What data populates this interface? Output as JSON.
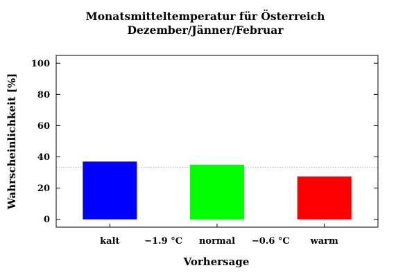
{
  "chart_data": {
    "type": "bar",
    "title_line1": "Monatsmitteltemperatur für Österreich",
    "title_line2": "Dezember/Jänner/Februar",
    "xlabel": "Vorhersage",
    "ylabel": "Wahrscheinlichkeit [%]",
    "categories": [
      "kalt",
      "normal",
      "warm"
    ],
    "values": [
      37,
      35,
      27.5
    ],
    "colors": [
      "#0000ff",
      "#00ff00",
      "#ff0000"
    ],
    "separator_labels": [
      "−1.9 °C",
      "−0.6 °C"
    ],
    "reference_line": 33.3,
    "ylim": [
      -5,
      105
    ],
    "yticks": [
      0,
      20,
      40,
      60,
      80,
      100
    ],
    "grid": false,
    "legend": "none"
  }
}
